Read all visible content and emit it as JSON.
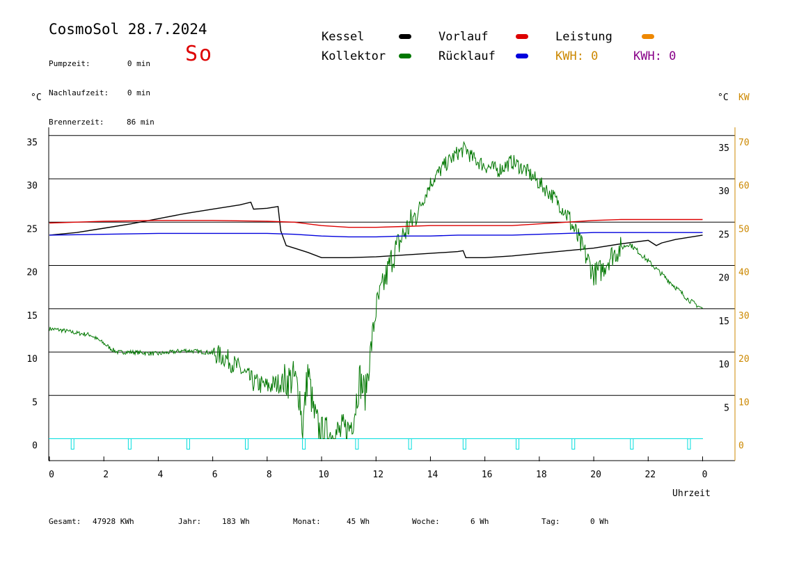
{
  "header": {
    "title": "CosmoSol 28.7.2024",
    "day": "So",
    "stats": [
      {
        "label": "Pumpzeit:",
        "value": "0 min"
      },
      {
        "label": "Nachlaufzeit:",
        "value": "0 min"
      },
      {
        "label": "Brennerzeit:",
        "value": "86 min"
      }
    ]
  },
  "legend": {
    "kessel": "Kessel",
    "kollektor": "Kollektor",
    "vorlauf": "Vorlauf",
    "ruecklauf": "Rücklauf",
    "leistung": "Leistung",
    "kwh1": "KWH: 0",
    "kwh2": "KWH: 0"
  },
  "axes": {
    "left_unit": "°C",
    "right_unit": "°C",
    "right_unit2": "KW",
    "x_label": "Uhrzeit"
  },
  "colors": {
    "kessel": "#000000",
    "kollektor": "#007700",
    "vorlauf": "#dd0000",
    "ruecklauf": "#0000dd",
    "leistung": "#ee8800",
    "kwh2": "#880088",
    "pump": "#00dddd",
    "kw_axis": "#cc8800"
  },
  "footer": {
    "gesamt_label": "Gesamt:",
    "gesamt_value": "47928 KWh",
    "jahr_label": "Jahr:",
    "jahr_value": "183 Wh",
    "monat_label": "Monat:",
    "monat_value": "45 Wh",
    "woche_label": "Woche:",
    "woche_value": "6 Wh",
    "tag_label": "Tag:",
    "tag_value": "0 Wh"
  },
  "chart_data": {
    "type": "line",
    "xlabel": "Uhrzeit",
    "ylabel": "°C",
    "xlim": [
      0,
      24
    ],
    "ylim": [
      -2.5,
      37
    ],
    "y2lim": [
      -5,
      74
    ],
    "x_ticks": [
      "0",
      "2",
      "4",
      "6",
      "8",
      "10",
      "12",
      "14",
      "16",
      "18",
      "20",
      "22",
      "0"
    ],
    "y_ticks_left": [
      "0",
      "5",
      "10",
      "15",
      "20",
      "25",
      "30",
      "35"
    ],
    "y_ticks_right": [
      "5",
      "10",
      "15",
      "20",
      "25",
      "30",
      "35"
    ],
    "y_ticks_kw": [
      "0",
      "10",
      "20",
      "30",
      "40",
      "50",
      "60",
      "70"
    ],
    "grid": true,
    "series": [
      {
        "name": "Kessel",
        "x": [
          0,
          1,
          2,
          3,
          4,
          5,
          6,
          7,
          7.4,
          7.5,
          8,
          8.4,
          8.5,
          8.7,
          9.0,
          9.5,
          10,
          11,
          12,
          13,
          14,
          15,
          15.2,
          15.3,
          16,
          17,
          18,
          19,
          20,
          21,
          22,
          22.3,
          22.5,
          23,
          24
        ],
        "y": [
          23.5,
          23.8,
          24.3,
          24.8,
          25.4,
          26.0,
          26.5,
          27.0,
          27.3,
          26.5,
          26.6,
          26.8,
          24.0,
          22.3,
          22.0,
          21.5,
          20.9,
          20.9,
          21.0,
          21.2,
          21.4,
          21.6,
          21.7,
          20.9,
          20.9,
          21.1,
          21.4,
          21.7,
          22.0,
          22.5,
          22.9,
          22.3,
          22.6,
          23.0,
          23.5
        ]
      },
      {
        "name": "Kollektor",
        "x": [
          0,
          0.5,
          1,
          1.5,
          2,
          2.3,
          2.5,
          3,
          4,
          5,
          6,
          6.5,
          7,
          7.5,
          8,
          8.5,
          9,
          9.2,
          9.3,
          9.5,
          9.7,
          9.9,
          10,
          10.5,
          11,
          11.2,
          11.4,
          11.6,
          11.8,
          12,
          12.3,
          12.6,
          13,
          13.5,
          14,
          14.5,
          15,
          15.3,
          15.5,
          16,
          16.5,
          17,
          17.5,
          18,
          18.5,
          19,
          19.3,
          19.5,
          19.8,
          20,
          20.3,
          20.6,
          21,
          21.3,
          21.5,
          22,
          22.5,
          23,
          23.5,
          24
        ],
        "y": [
          12.7,
          12.5,
          12.2,
          12.0,
          11.0,
          10.3,
          10.0,
          10.0,
          9.8,
          10.2,
          9.9,
          9.3,
          8.0,
          6.5,
          6.0,
          6.5,
          7.0,
          5.0,
          1.0,
          8.0,
          3.0,
          1.0,
          0.5,
          0.5,
          1.0,
          3.0,
          7.0,
          5.0,
          10.0,
          15.0,
          18.0,
          21.0,
          23.5,
          26.0,
          29.5,
          31.5,
          33.0,
          33.5,
          32.5,
          31.5,
          31.0,
          32.0,
          31.0,
          29.5,
          28.0,
          26.0,
          24.0,
          22.5,
          20.5,
          19.0,
          19.5,
          21.0,
          22.0,
          22.5,
          22.0,
          20.5,
          19.0,
          17.5,
          16.0,
          15.0
        ]
      },
      {
        "name": "Vorlauf",
        "x": [
          0,
          2,
          4,
          6,
          8,
          9,
          10,
          11,
          12,
          13,
          14,
          15,
          16,
          17,
          18,
          19,
          20,
          21,
          22,
          23,
          24
        ],
        "y": [
          24.9,
          25.1,
          25.2,
          25.2,
          25.1,
          25.0,
          24.6,
          24.4,
          24.4,
          24.5,
          24.6,
          24.6,
          24.6,
          24.6,
          24.8,
          25.0,
          25.2,
          25.3,
          25.3,
          25.3,
          25.3
        ]
      },
      {
        "name": "Rücklauf",
        "x": [
          0,
          2,
          4,
          6,
          8,
          9,
          10,
          11,
          12,
          13,
          14,
          15,
          16,
          17,
          18,
          19,
          20,
          21,
          22,
          23,
          24
        ],
        "y": [
          23.5,
          23.6,
          23.7,
          23.7,
          23.7,
          23.6,
          23.4,
          23.3,
          23.3,
          23.4,
          23.4,
          23.5,
          23.5,
          23.5,
          23.6,
          23.7,
          23.8,
          23.8,
          23.8,
          23.8,
          23.8
        ]
      },
      {
        "name": "Pumpe",
        "pulses": [
          0.85,
          2.95,
          5.1,
          7.25,
          9.35,
          11.3,
          13.25,
          15.25,
          17.2,
          19.25,
          21.4,
          23.5
        ]
      }
    ]
  }
}
